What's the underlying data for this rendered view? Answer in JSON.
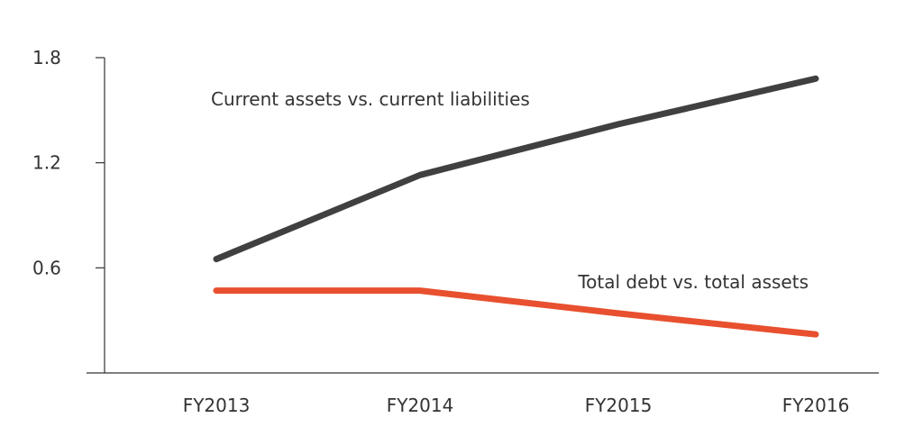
{
  "chart_data": {
    "type": "line",
    "categories": [
      "FY2013",
      "FY2014",
      "FY2015",
      "FY2016"
    ],
    "yticks": [
      0.6,
      1.2,
      1.8
    ],
    "ylim": [
      0,
      1.8
    ],
    "grid": false,
    "series": [
      {
        "name": "Current assets vs. current liabilities",
        "values": [
          0.65,
          1.13,
          1.42,
          1.68
        ],
        "color": "#404040"
      },
      {
        "name": "Total debt vs. total assets",
        "values": [
          0.47,
          0.47,
          0.34,
          0.22
        ],
        "color": "#e8502f"
      }
    ]
  }
}
